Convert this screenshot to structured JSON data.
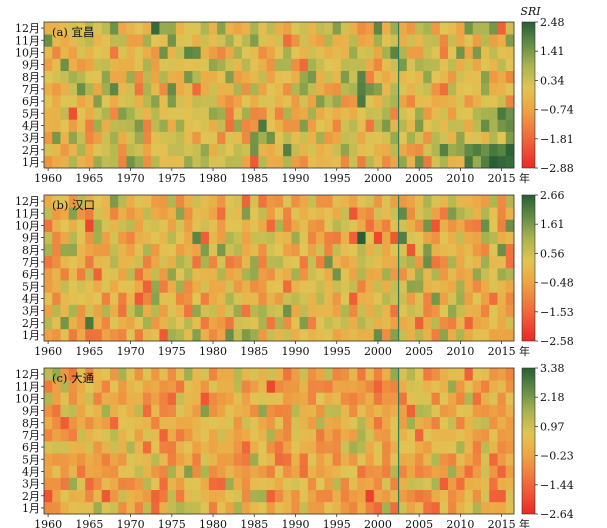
{
  "chart_data": [
    {
      "type": "heatmap",
      "panel_label": "(a) 宜昌",
      "colorbar_title": "SRI",
      "colorbar_ticks": [
        "2.48",
        "1.41",
        "0.34",
        "−0.74",
        "−1.81",
        "−2.88"
      ],
      "vmin": -2.88,
      "vmax": 2.48,
      "divider_year": 2003,
      "x_ticks": [
        "1960",
        "1965",
        "1970",
        "1975",
        "1980",
        "1985",
        "1990",
        "1995",
        "2000",
        "2005",
        "2010",
        "2015"
      ],
      "x_unit": "年",
      "y_ticks": [
        "1月",
        "2月",
        "3月",
        "4月",
        "5月",
        "6月",
        "7月",
        "8月",
        "9月",
        "10月",
        "11月",
        "12月"
      ],
      "year_start": 1960,
      "year_end": 2016,
      "seed": 11,
      "trend": "recent-positive-winter"
    },
    {
      "type": "heatmap",
      "panel_label": "(b) 汉口",
      "colorbar_ticks": [
        "2.66",
        "1.61",
        "0.56",
        "−0.48",
        "−1.53",
        "−2.58"
      ],
      "vmin": -2.58,
      "vmax": 2.66,
      "divider_year": 2003,
      "x_ticks": [
        "1960",
        "1965",
        "1970",
        "1975",
        "1980",
        "1985",
        "1990",
        "1995",
        "2000",
        "2005",
        "2010",
        "2015"
      ],
      "x_unit": "年",
      "y_ticks": [
        "1月",
        "2月",
        "3月",
        "4月",
        "5月",
        "6月",
        "7月",
        "8月",
        "9月",
        "10月",
        "11月",
        "12月"
      ],
      "year_start": 1960,
      "year_end": 2016,
      "seed": 23,
      "trend": "neutral"
    },
    {
      "type": "heatmap",
      "panel_label": "(c) 大通",
      "colorbar_ticks": [
        "3.38",
        "2.18",
        "0.97",
        "−0.23",
        "−1.44",
        "−2.64"
      ],
      "vmin": -2.64,
      "vmax": 3.38,
      "divider_year": 2003,
      "x_ticks": [
        "1960",
        "1965",
        "1970",
        "1975",
        "1980",
        "1985",
        "1990",
        "1995",
        "2000",
        "2005",
        "2010",
        "2015"
      ],
      "x_unit": "年",
      "y_ticks": [
        "1月",
        "2月",
        "3月",
        "4月",
        "5月",
        "6月",
        "7月",
        "8月",
        "9月",
        "10月",
        "11月",
        "12月"
      ],
      "year_start": 1960,
      "year_end": 2016,
      "seed": 37,
      "trend": "neutral"
    }
  ]
}
